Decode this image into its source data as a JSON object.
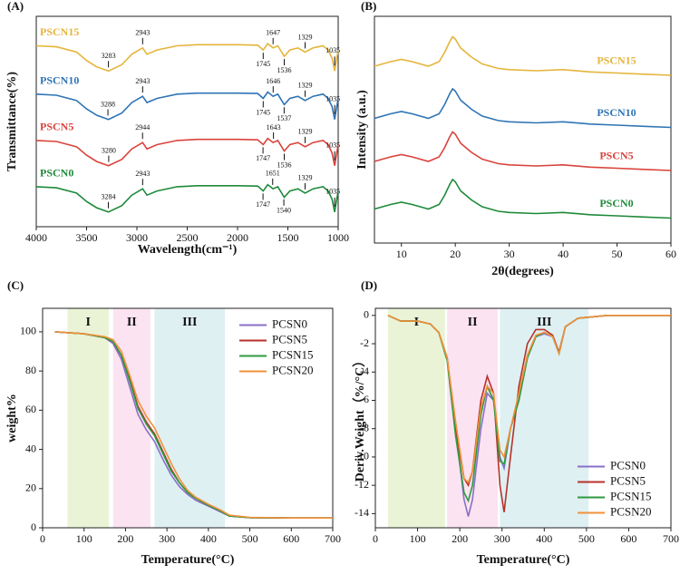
{
  "chart_data": [
    {
      "type": "line",
      "panel": "(A)",
      "x_label": "Wavelength(cm⁻¹)",
      "y_label": "Transmittance(%)",
      "xlim": [
        4000,
        1000
      ],
      "xticks": [
        4000,
        3500,
        3000,
        2500,
        2000,
        1500,
        1000
      ],
      "ylim": [
        0,
        100
      ],
      "legend": "inline-left",
      "x": [
        4000,
        3800,
        3600,
        3500,
        3400,
        3283,
        3150,
        3050,
        2943,
        2900,
        2800,
        2600,
        2400,
        2200,
        2000,
        1800,
        1745,
        1700,
        1647,
        1600,
        1536,
        1480,
        1400,
        1329,
        1250,
        1150,
        1100,
        1060,
        1035,
        1000
      ],
      "series": [
        {
          "name": "PSCN15",
          "color": "#e5b53b",
          "values": [
            86,
            85.5,
            83,
            79,
            76,
            74,
            77,
            82,
            85,
            82,
            84,
            86,
            86.5,
            86.5,
            86.5,
            86.3,
            84,
            87,
            85,
            86,
            81,
            84,
            85,
            83,
            85,
            86,
            84,
            80,
            74,
            84
          ],
          "peaks": [
            3283,
            2943,
            1745,
            1647,
            1536,
            1329,
            1035
          ]
        },
        {
          "name": "PSCN10",
          "color": "#2f74b5",
          "values": [
            63,
            62.5,
            60,
            56,
            53,
            51,
            54,
            59,
            62,
            59,
            61,
            63,
            63.5,
            63.5,
            63.5,
            63.3,
            61,
            64,
            62,
            63,
            58,
            61,
            62,
            60,
            62,
            63,
            61,
            57,
            51,
            61
          ],
          "peaks": [
            3288,
            2943,
            1745,
            1646,
            1537,
            1329,
            1035
          ]
        },
        {
          "name": "PSCN5",
          "color": "#d9433b",
          "values": [
            41,
            40.5,
            38,
            34,
            31,
            29,
            32,
            37,
            40,
            37,
            39,
            41,
            41.5,
            41.5,
            41.5,
            41.3,
            39,
            42,
            40,
            41,
            36,
            39,
            40,
            38,
            40,
            41,
            39,
            35,
            29,
            39
          ],
          "peaks": [
            3280,
            2944,
            1747,
            1643,
            1536,
            1329,
            1035
          ]
        },
        {
          "name": "PSCN0",
          "color": "#1e8a3a",
          "values": [
            19,
            18.5,
            16,
            12,
            9,
            7,
            10,
            15,
            18,
            15,
            17,
            19,
            19.5,
            19.5,
            19.5,
            19.3,
            17,
            20,
            18,
            19,
            14,
            17,
            18,
            16,
            18,
            19,
            17,
            13,
            7,
            17
          ],
          "peaks": [
            3284,
            2943,
            1747,
            1651,
            1540,
            1329,
            1035
          ]
        }
      ]
    },
    {
      "type": "line",
      "panel": "(B)",
      "x_label": "2θ(degrees)",
      "y_label": "Intensity (a.u.)",
      "xlim": [
        5,
        60
      ],
      "xticks": [
        10,
        20,
        30,
        40,
        50,
        60
      ],
      "ylim": [
        0,
        100
      ],
      "legend": "inline-right",
      "x": [
        5,
        8,
        10,
        12,
        15,
        17,
        18,
        19,
        19.5,
        20,
        21,
        22,
        23,
        25,
        28,
        30,
        35,
        40,
        45,
        50,
        55,
        60
      ],
      "series": [
        {
          "name": "PSCN15",
          "color": "#e5b53b",
          "values": [
            78,
            80,
            81,
            80,
            78,
            80,
            84,
            89,
            91,
            90,
            86,
            84,
            82,
            79,
            77,
            76.5,
            76,
            76.5,
            75.5,
            75,
            74.5,
            74
          ]
        },
        {
          "name": "PSCN10",
          "color": "#2f74b5",
          "values": [
            55,
            57,
            58,
            57,
            55,
            57,
            61,
            66,
            68,
            67,
            63,
            61,
            59,
            56,
            54,
            53.5,
            53,
            53.5,
            52.5,
            52,
            51.5,
            51
          ]
        },
        {
          "name": "PSCN5",
          "color": "#d9433b",
          "values": [
            36,
            38,
            39,
            38,
            36,
            38,
            42,
            47,
            49,
            48,
            44,
            42,
            40,
            37,
            35,
            34.5,
            34,
            34.5,
            33.5,
            33,
            32.5,
            32
          ]
        },
        {
          "name": "PSCN0",
          "color": "#1e8a3a",
          "values": [
            15,
            17,
            18,
            17,
            15,
            17,
            21,
            26,
            28,
            27,
            23,
            21,
            19,
            16,
            14,
            13.5,
            13,
            13.5,
            12.5,
            12,
            11.5,
            11
          ]
        }
      ]
    },
    {
      "type": "line",
      "panel": "(C)",
      "x_label": "Temperature(°C)",
      "y_label": "weight%",
      "xlim": [
        0,
        700
      ],
      "xticks": [
        0,
        100,
        200,
        300,
        400,
        500,
        600,
        700
      ],
      "ylim": [
        0,
        112
      ],
      "yticks": [
        0,
        20,
        40,
        60,
        80,
        100
      ],
      "legend": "upper right",
      "regions": [
        {
          "label": "I",
          "range": [
            60,
            160
          ],
          "color": "#eaf3d6"
        },
        {
          "label": "II",
          "range": [
            170,
            260
          ],
          "color": "#fbe3f1"
        },
        {
          "label": "III",
          "range": [
            270,
            440
          ],
          "color": "#dff0f3"
        }
      ],
      "x": [
        30,
        100,
        150,
        170,
        190,
        210,
        230,
        250,
        270,
        290,
        310,
        330,
        350,
        370,
        400,
        430,
        450,
        500,
        600,
        700
      ],
      "series": [
        {
          "name": "PCSN0",
          "color": "#8a6fc9",
          "values": [
            100,
            99,
            97,
            94,
            86,
            72,
            58,
            50,
            44,
            35,
            27,
            21,
            17,
            14,
            11,
            8,
            6,
            5.2,
            5,
            5
          ]
        },
        {
          "name": "PCSN5",
          "color": "#b8312b",
          "values": [
            100,
            99,
            97,
            95,
            88,
            76,
            62,
            54,
            48,
            39,
            30,
            23,
            18,
            15,
            11.5,
            8.5,
            6,
            5.2,
            5,
            5
          ]
        },
        {
          "name": "PCSN15",
          "color": "#2e9a3e",
          "values": [
            100,
            99,
            97,
            95,
            88,
            75,
            61,
            53,
            47,
            38,
            29,
            23,
            18,
            15,
            11.5,
            8.5,
            6,
            5.2,
            5,
            5
          ]
        },
        {
          "name": "PCSN20",
          "color": "#f0923a",
          "values": [
            100,
            99,
            97.5,
            96,
            90,
            78,
            65,
            57,
            51,
            42,
            33,
            25,
            19,
            15.5,
            12,
            9,
            6.5,
            5.3,
            5,
            5
          ]
        }
      ]
    },
    {
      "type": "line",
      "panel": "(D)",
      "x_label": "Temperature(°C)",
      "y_label": "Deriv.Weight（%/°C）",
      "xlim": [
        0,
        700
      ],
      "xticks": [
        0,
        100,
        200,
        300,
        400,
        500,
        600,
        700
      ],
      "ylim": [
        -15,
        0.5
      ],
      "yticks": [
        0,
        -2,
        -4,
        -6,
        -8,
        -10,
        -12,
        -14
      ],
      "legend": "lower right",
      "regions": [
        {
          "label": "I",
          "range": [
            30,
            165
          ],
          "color": "#eaf3d6"
        },
        {
          "label": "II",
          "range": [
            170,
            290
          ],
          "color": "#fbe3f1"
        },
        {
          "label": "III",
          "range": [
            295,
            505
          ],
          "color": "#dff0f3"
        }
      ],
      "x": [
        30,
        60,
        100,
        130,
        150,
        170,
        190,
        210,
        220,
        230,
        250,
        265,
        280,
        295,
        305,
        320,
        340,
        360,
        380,
        400,
        420,
        435,
        450,
        480,
        550,
        700
      ],
      "series": [
        {
          "name": "PCSN0",
          "color": "#8a6fc9",
          "values": [
            0,
            -0.4,
            -0.4,
            -0.6,
            -1.2,
            -3,
            -8,
            -13,
            -14.2,
            -13,
            -8,
            -5.5,
            -6,
            -10,
            -10.8,
            -8,
            -6,
            -3,
            -1.5,
            -1.3,
            -1.5,
            -2.6,
            -0.8,
            -0.2,
            0,
            0
          ]
        },
        {
          "name": "PCSN5",
          "color": "#b8312b",
          "values": [
            0,
            -0.4,
            -0.4,
            -0.6,
            -1.2,
            -3,
            -8,
            -11.5,
            -12,
            -11,
            -6,
            -4.3,
            -5.5,
            -12,
            -13.9,
            -10,
            -5,
            -2,
            -1,
            -1,
            -1.4,
            -2.6,
            -0.8,
            -0.2,
            0,
            0
          ]
        },
        {
          "name": "PCSN15",
          "color": "#2e9a3e",
          "values": [
            0,
            -0.4,
            -0.4,
            -0.6,
            -1.2,
            -3.2,
            -8.5,
            -12.5,
            -13.1,
            -12,
            -7,
            -5,
            -6,
            -10.3,
            -10.5,
            -8,
            -6,
            -3,
            -1.5,
            -1.2,
            -1.5,
            -2.7,
            -0.8,
            -0.2,
            0,
            0
          ]
        },
        {
          "name": "PCSN20",
          "color": "#f0923a",
          "values": [
            0,
            -0.4,
            -0.4,
            -0.6,
            -1.2,
            -3,
            -7.5,
            -11.5,
            -11.8,
            -11,
            -6.5,
            -5,
            -5.5,
            -9.5,
            -10,
            -8,
            -5.5,
            -2.8,
            -1.4,
            -1.2,
            -1.5,
            -2.7,
            -0.8,
            -0.2,
            0,
            0
          ]
        }
      ]
    }
  ]
}
